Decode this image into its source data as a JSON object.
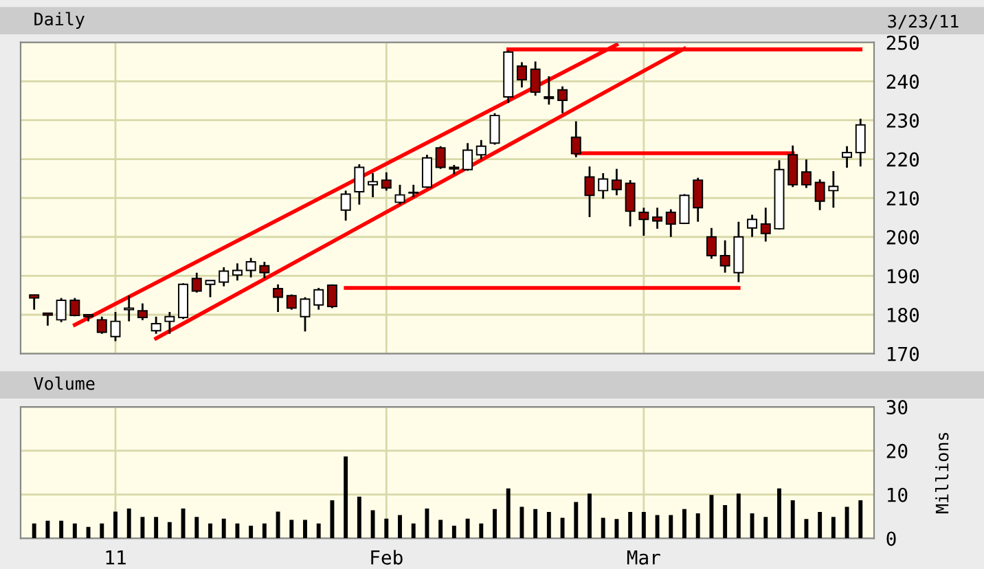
{
  "chart_data": [
    {
      "type": "candlestick",
      "title": "Daily",
      "subtitle": "3/23/11",
      "categories": [
        null,
        null,
        null,
        null,
        null,
        null,
        null,
        null,
        null,
        null,
        null,
        null,
        null,
        null,
        null,
        null,
        null,
        null,
        null,
        null,
        null,
        null,
        null,
        null,
        null,
        null,
        null,
        null,
        null,
        null,
        null,
        null,
        null,
        null,
        null,
        null,
        null,
        null,
        null,
        null,
        null,
        null,
        null,
        null,
        null,
        null,
        null,
        null,
        null,
        null,
        null,
        null,
        null,
        null,
        null,
        null,
        null,
        null,
        null,
        null,
        null,
        null
      ],
      "ohlc": [
        [
          185.1,
          185.1,
          181.3,
          184.3
        ],
        [
          180.4,
          180.4,
          177.2,
          179.9
        ],
        [
          178.7,
          184.3,
          178.1,
          183.7
        ],
        [
          183.7,
          184.3,
          179.6,
          179.8
        ],
        [
          180.0,
          180.0,
          178.3,
          179.5
        ],
        [
          178.7,
          179.5,
          175.1,
          175.5
        ],
        [
          174.4,
          180.7,
          173.2,
          178.3
        ],
        [
          181.3,
          184.9,
          178.3,
          181.7
        ],
        [
          181.0,
          182.9,
          178.6,
          179.3
        ],
        [
          175.9,
          179.5,
          175.1,
          177.7
        ],
        [
          178.3,
          180.7,
          175.1,
          179.5
        ],
        [
          179.3,
          188.1,
          178.9,
          187.8
        ],
        [
          189.3,
          190.8,
          185.7,
          186.1
        ],
        [
          187.8,
          188.8,
          184.5,
          188.8
        ],
        [
          188.4,
          192.2,
          187.3,
          191.2
        ],
        [
          190.2,
          193.2,
          188.8,
          191.4
        ],
        [
          191.4,
          194.6,
          189.6,
          193.6
        ],
        [
          192.6,
          193.6,
          189.4,
          190.8
        ],
        [
          186.7,
          187.8,
          180.7,
          184.5
        ],
        [
          184.9,
          185.2,
          181.3,
          181.7
        ],
        [
          179.5,
          184.5,
          175.7,
          184.0
        ],
        [
          182.5,
          186.9,
          181.3,
          186.4
        ],
        [
          187.6,
          187.8,
          181.7,
          182.1
        ],
        [
          206.9,
          211.9,
          204.2,
          211.0
        ],
        [
          211.6,
          218.7,
          208.3,
          217.9
        ],
        [
          213.4,
          216.4,
          210.2,
          214.2
        ],
        [
          214.6,
          216.6,
          211.9,
          212.6
        ],
        [
          208.9,
          213.4,
          208.3,
          210.8
        ],
        [
          211.3,
          213.4,
          210.2,
          211.4
        ],
        [
          212.8,
          221.1,
          212.6,
          220.3
        ],
        [
          222.9,
          223.3,
          217.5,
          217.9
        ],
        [
          217.9,
          218.5,
          216.1,
          217.5
        ],
        [
          217.3,
          224.1,
          217.0,
          222.3
        ],
        [
          221.1,
          224.9,
          219.9,
          223.3
        ],
        [
          224.1,
          231.8,
          223.7,
          231.2
        ],
        [
          236.0,
          247.9,
          234.4,
          247.5
        ],
        [
          243.9,
          244.9,
          238.4,
          240.4
        ],
        [
          243.1,
          245.1,
          236.3,
          237.2
        ],
        [
          236.0,
          241.3,
          234.0,
          235.6
        ],
        [
          237.8,
          238.7,
          231.8,
          235.1
        ],
        [
          225.6,
          229.7,
          220.5,
          221.4
        ],
        [
          215.4,
          218.1,
          205.1,
          210.7
        ],
        [
          211.9,
          216.4,
          209.8,
          214.9
        ],
        [
          214.6,
          217.5,
          210.7,
          212.2
        ],
        [
          213.8,
          214.6,
          202.7,
          206.6
        ],
        [
          206.3,
          207.5,
          200.3,
          204.5
        ],
        [
          205.1,
          207.5,
          202.1,
          204.1
        ],
        [
          206.3,
          207.1,
          200.0,
          203.3
        ],
        [
          203.5,
          211.0,
          203.3,
          210.7
        ],
        [
          214.6,
          215.2,
          203.9,
          207.5
        ],
        [
          200.0,
          202.3,
          194.4,
          195.2
        ],
        [
          195.2,
          199.1,
          190.8,
          192.6
        ],
        [
          190.8,
          203.9,
          188.4,
          200.0
        ],
        [
          202.3,
          205.7,
          200.0,
          204.5
        ],
        [
          203.3,
          207.5,
          198.8,
          200.9
        ],
        [
          202.1,
          219.7,
          201.9,
          217.3
        ],
        [
          221.1,
          223.5,
          212.8,
          213.4
        ],
        [
          216.7,
          219.9,
          212.6,
          213.4
        ],
        [
          214.0,
          214.8,
          206.9,
          209.2
        ],
        [
          211.9,
          216.9,
          207.5,
          213.0
        ],
        [
          220.5,
          223.3,
          217.8,
          221.7
        ],
        [
          221.7,
          230.4,
          218.1,
          228.8
        ]
      ],
      "colors": [
        "#990000",
        "#990000",
        "#ffffff",
        "#990000",
        "#990000",
        "#990000",
        "#ffffff",
        "#ffffff",
        "#990000",
        "#ffffff",
        "#ffffff",
        "#ffffff",
        "#990000",
        "#ffffff",
        "#ffffff",
        "#ffffff",
        "#ffffff",
        "#990000",
        "#990000",
        "#990000",
        "#ffffff",
        "#ffffff",
        "#990000",
        "#ffffff",
        "#ffffff",
        "#ffffff",
        "#990000",
        "#ffffff",
        "#ffffff",
        "#ffffff",
        "#990000",
        "#990000",
        "#ffffff",
        "#ffffff",
        "#ffffff",
        "#ffffff",
        "#990000",
        "#990000",
        "#990000",
        "#990000",
        "#990000",
        "#990000",
        "#ffffff",
        "#990000",
        "#990000",
        "#990000",
        "#990000",
        "#990000",
        "#ffffff",
        "#990000",
        "#990000",
        "#990000",
        "#ffffff",
        "#ffffff",
        "#990000",
        "#ffffff",
        "#990000",
        "#990000",
        "#990000",
        "#ffffff",
        "#ffffff",
        "#ffffff"
      ],
      "series": [
        {
          "type": "line",
          "color": "#ff0000",
          "values": [
            null,
            null,
            null,
            177.4,
            null,
            null,
            null,
            null,
            null,
            null,
            null,
            null,
            null,
            null,
            null,
            null,
            null,
            null,
            null,
            null,
            null,
            null,
            null,
            null,
            null,
            null,
            null,
            null,
            null,
            null,
            null,
            null,
            null,
            null,
            null,
            null,
            null,
            null,
            null,
            null,
            null,
            null,
            null,
            249.4,
            null,
            null,
            null,
            null,
            null,
            null,
            null,
            null,
            null,
            null,
            null,
            null,
            null,
            null,
            null,
            null,
            null,
            null
          ]
        },
        {
          "type": "line",
          "color": "#ff0000",
          "values": [
            null,
            null,
            null,
            null,
            null,
            null,
            null,
            null,
            null,
            173.9,
            null,
            null,
            null,
            null,
            null,
            null,
            null,
            null,
            null,
            null,
            null,
            null,
            null,
            null,
            null,
            null,
            null,
            null,
            null,
            null,
            null,
            null,
            null,
            null,
            null,
            null,
            null,
            null,
            null,
            null,
            null,
            null,
            null,
            null,
            null,
            null,
            null,
            null,
            248.4,
            null,
            null,
            null,
            null,
            null,
            null,
            null,
            null,
            null,
            null,
            null,
            null,
            null
          ]
        },
        {
          "type": "line",
          "color": "#ff0000",
          "values": [
            null,
            null,
            null,
            null,
            null,
            null,
            null,
            null,
            null,
            null,
            null,
            null,
            null,
            null,
            null,
            null,
            null,
            null,
            null,
            null,
            null,
            null,
            null,
            null,
            null,
            null,
            null,
            null,
            null,
            null,
            null,
            null,
            null,
            null,
            null,
            248.2,
            null,
            null,
            null,
            null,
            null,
            null,
            null,
            null,
            null,
            null,
            null,
            null,
            null,
            null,
            null,
            null,
            null,
            null,
            null,
            null,
            null,
            null,
            null,
            null,
            null,
            248.2
          ]
        },
        {
          "type": "line",
          "color": "#ff0000",
          "values": [
            null,
            null,
            null,
            null,
            null,
            null,
            null,
            null,
            null,
            null,
            null,
            null,
            null,
            null,
            null,
            null,
            null,
            null,
            null,
            null,
            null,
            null,
            null,
            null,
            null,
            null,
            null,
            null,
            null,
            null,
            null,
            null,
            null,
            null,
            null,
            null,
            null,
            null,
            null,
            null,
            221.5,
            null,
            null,
            null,
            null,
            null,
            null,
            null,
            null,
            null,
            null,
            null,
            null,
            null,
            null,
            null,
            221.5,
            null,
            null,
            null,
            null,
            null
          ]
        },
        {
          "type": "line",
          "color": "#ff0000",
          "values": [
            null,
            null,
            null,
            null,
            null,
            null,
            null,
            null,
            null,
            null,
            null,
            null,
            null,
            null,
            null,
            null,
            null,
            null,
            null,
            null,
            null,
            null,
            null,
            186.9,
            null,
            null,
            null,
            null,
            null,
            null,
            null,
            null,
            null,
            null,
            null,
            null,
            null,
            null,
            null,
            null,
            null,
            null,
            null,
            null,
            null,
            null,
            null,
            null,
            null,
            null,
            null,
            null,
            186.9,
            null,
            null,
            null,
            null,
            null,
            null,
            null,
            null,
            null
          ]
        }
      ],
      "ylim": [
        170,
        250
      ],
      "yticks": [
        170,
        180,
        190,
        200,
        210,
        220,
        230,
        240,
        250
      ],
      "grid": true,
      "tick_labels": "y"
    },
    {
      "type": "bar",
      "title": "Volume",
      "ylabel": "Millions",
      "color": "#000000",
      "categories": [
        null,
        null,
        null,
        null,
        null,
        null,
        "11",
        null,
        null,
        null,
        null,
        null,
        null,
        null,
        null,
        null,
        null,
        null,
        null,
        null,
        null,
        null,
        null,
        null,
        null,
        null,
        "Feb",
        null,
        null,
        null,
        null,
        null,
        null,
        null,
        null,
        null,
        null,
        null,
        null,
        null,
        null,
        null,
        null,
        null,
        null,
        "Mar",
        null,
        null,
        null,
        null,
        null,
        null,
        null,
        null,
        null,
        null,
        null,
        null,
        null,
        null,
        null,
        null
      ],
      "values": [
        3.4,
        4.0,
        4.0,
        3.4,
        2.6,
        3.4,
        6.1,
        6.8,
        4.9,
        4.9,
        3.7,
        6.8,
        4.9,
        3.4,
        4.5,
        3.4,
        2.9,
        3.4,
        6.1,
        4.2,
        4.2,
        3.4,
        8.7,
        18.7,
        9.5,
        6.4,
        4.5,
        5.3,
        3.4,
        6.8,
        4.2,
        2.9,
        4.5,
        3.4,
        6.7,
        11.4,
        7.2,
        6.7,
        6.0,
        4.7,
        8.3,
        10.2,
        4.7,
        4.4,
        6.0,
        6.0,
        5.3,
        5.3,
        6.7,
        5.7,
        9.9,
        7.6,
        10.2,
        5.7,
        4.9,
        11.4,
        8.7,
        4.4,
        6.0,
        4.9,
        7.2,
        8.7
      ],
      "ylim": [
        0,
        30
      ],
      "yticks": [
        0,
        10,
        20,
        30
      ],
      "grid": true
    }
  ]
}
